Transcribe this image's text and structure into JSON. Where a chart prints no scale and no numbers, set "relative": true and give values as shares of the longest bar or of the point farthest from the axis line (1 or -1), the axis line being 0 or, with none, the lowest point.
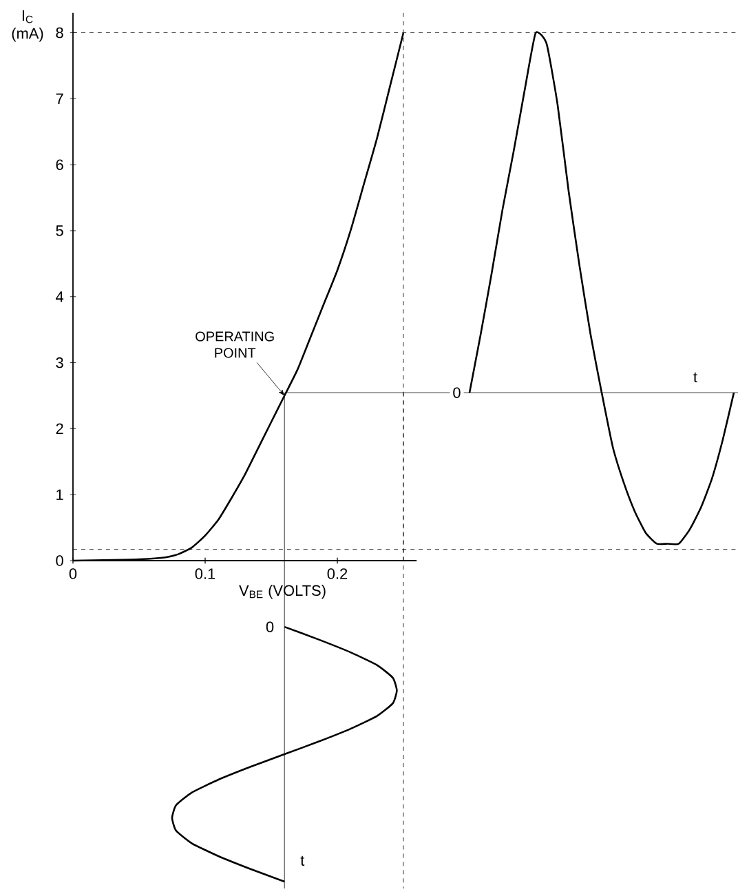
{
  "chart_data": [
    {
      "type": "line",
      "xlabel": "V$_{BE}$ (VOLTS)",
      "ylabel": "I$_{C}$ (mA)",
      "color": "#000000",
      "x": [
        0,
        0.03,
        0.05,
        0.07,
        0.08,
        0.09,
        0.1,
        0.11,
        0.12,
        0.13,
        0.14,
        0.15,
        0.16,
        0.17,
        0.18,
        0.19,
        0.2,
        0.21,
        0.22,
        0.23,
        0.24,
        0.25
      ],
      "values": [
        0,
        0.01,
        0.02,
        0.05,
        0.1,
        0.2,
        0.38,
        0.62,
        0.95,
        1.3,
        1.7,
        2.1,
        2.5,
        2.9,
        3.4,
        3.9,
        4.4,
        5.0,
        5.7,
        6.4,
        7.2,
        8.0
      ],
      "xlim": [
        0,
        0.26
      ],
      "ylim": [
        0,
        8.3
      ],
      "xticks": [
        0,
        {
          "value": 0.1,
          "label": "0.1"
        },
        {
          "value": 0.2,
          "label": "0.2"
        }
      ],
      "yticks": [
        0,
        1,
        2,
        3,
        4,
        5,
        6,
        7,
        8
      ],
      "ref_lines": [
        {
          "axis": "x",
          "value": 0.25,
          "line_style": "dashed"
        },
        {
          "axis": "y",
          "value": 8,
          "line_style": "dashed"
        },
        {
          "axis": "y",
          "value": 0.17,
          "line_style": "dashed"
        }
      ],
      "annotations": [
        {
          "text": "OPERATING POINT",
          "x": 0.16,
          "y": 2.5
        }
      ]
    },
    {
      "type": "line",
      "color": "#000000",
      "relative": true,
      "categories": [
        null,
        null,
        null,
        null,
        null,
        null,
        null,
        null,
        null,
        null,
        null,
        null,
        null,
        null,
        null,
        null,
        null,
        null,
        null,
        null,
        null,
        null,
        null,
        null,
        null
      ],
      "values": [
        0,
        0.16,
        0.33,
        0.51,
        0.67,
        0.84,
        1,
        0.97,
        0.8,
        0.56,
        0.35,
        0.16,
        0,
        -0.15,
        -0.25,
        -0.33,
        -0.39,
        -0.42,
        -0.42,
        -0.42,
        -0.38,
        -0.32,
        -0.24,
        -0.13,
        0
      ],
      "annotations": [
        "0",
        "t"
      ]
    },
    {
      "type": "line",
      "color": "#000000",
      "relative": true,
      "x": [
        0.16,
        0.186,
        0.21,
        0.23,
        0.242,
        0.245,
        0.242,
        0.23,
        0.21,
        0.186,
        0.16,
        0.134,
        0.11,
        0.09,
        0.078,
        0.075,
        0.078,
        0.09,
        0.11,
        0.134,
        0.16
      ],
      "values": [
        1,
        0.95,
        0.9,
        0.85,
        0.8,
        0.75,
        0.7,
        0.65,
        0.6,
        0.55,
        0.5,
        0.45,
        0.4,
        0.35,
        0.3,
        0.25,
        0.2,
        0.15,
        0.1,
        0.05,
        0
      ],
      "xlim": [
        0,
        0.25
      ],
      "xticks": [
        0,
        0.1,
        0.2
      ],
      "tick_labels": false,
      "ref_lines": [
        {
          "axis": "x",
          "value": 0.16
        },
        {
          "axis": "x",
          "value": 0.25,
          "line_style": "dashed"
        }
      ],
      "annotations": [
        "0",
        "t"
      ]
    }
  ]
}
